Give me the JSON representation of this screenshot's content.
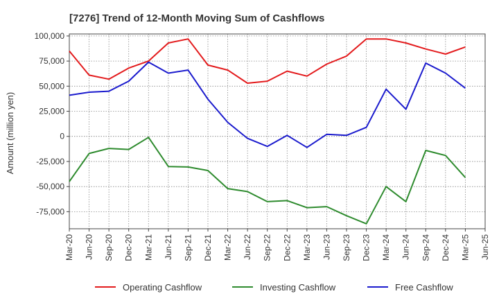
{
  "chart_data": {
    "type": "line",
    "title": "[7276]  Trend of 12-Month Moving Sum of Cashflows",
    "xlabel": "",
    "ylabel": "Amount (million yen)",
    "ylim": [
      -92000,
      102000
    ],
    "yticks": [
      100000,
      75000,
      50000,
      25000,
      0,
      -25000,
      -50000,
      -75000
    ],
    "ytick_labels": [
      "100,000",
      "75,000",
      "50,000",
      "25,000",
      "0",
      "-25,000",
      "-50,000",
      "-75,000"
    ],
    "x_tick_labels": [
      "Mar-20",
      "Jun-20",
      "Sep-20",
      "Dec-20",
      "Mar-21",
      "Jun-21",
      "Sep-21",
      "Dec-21",
      "Mar-22",
      "Jun-22",
      "Sep-22",
      "Dec-22",
      "Mar-23",
      "Jun-23",
      "Sep-23",
      "Dec-23",
      "Mar-24",
      "Jun-24",
      "Sep-24",
      "Dec-24",
      "Mar-25",
      "Jun-25"
    ],
    "grid": true,
    "legend_position": "bottom",
    "series": [
      {
        "name": "Operating Cashflow",
        "color": "#e31a1c",
        "values": [
          85000,
          61000,
          57000,
          68000,
          75000,
          93000,
          97000,
          71000,
          66000,
          53000,
          55000,
          65000,
          60000,
          72000,
          80000,
          97000,
          97000,
          93000,
          87000,
          82000,
          89000
        ]
      },
      {
        "name": "Investing Cashflow",
        "color": "#2e8b2e",
        "values": [
          -45000,
          -17000,
          -12000,
          -13000,
          -1000,
          -30000,
          -30500,
          -34000,
          -52000,
          -55000,
          -65000,
          -64000,
          -71000,
          -70000,
          -79000,
          -87000,
          -50000,
          -65000,
          -14000,
          -19000,
          -41000
        ]
      },
      {
        "name": "Free Cashflow",
        "color": "#1a1acd",
        "values": [
          41000,
          44000,
          45000,
          55000,
          74000,
          63000,
          66000,
          37000,
          14000,
          -2000,
          -10000,
          1000,
          -11000,
          2000,
          1000,
          9000,
          47000,
          27000,
          73000,
          63000,
          48000
        ]
      }
    ]
  }
}
